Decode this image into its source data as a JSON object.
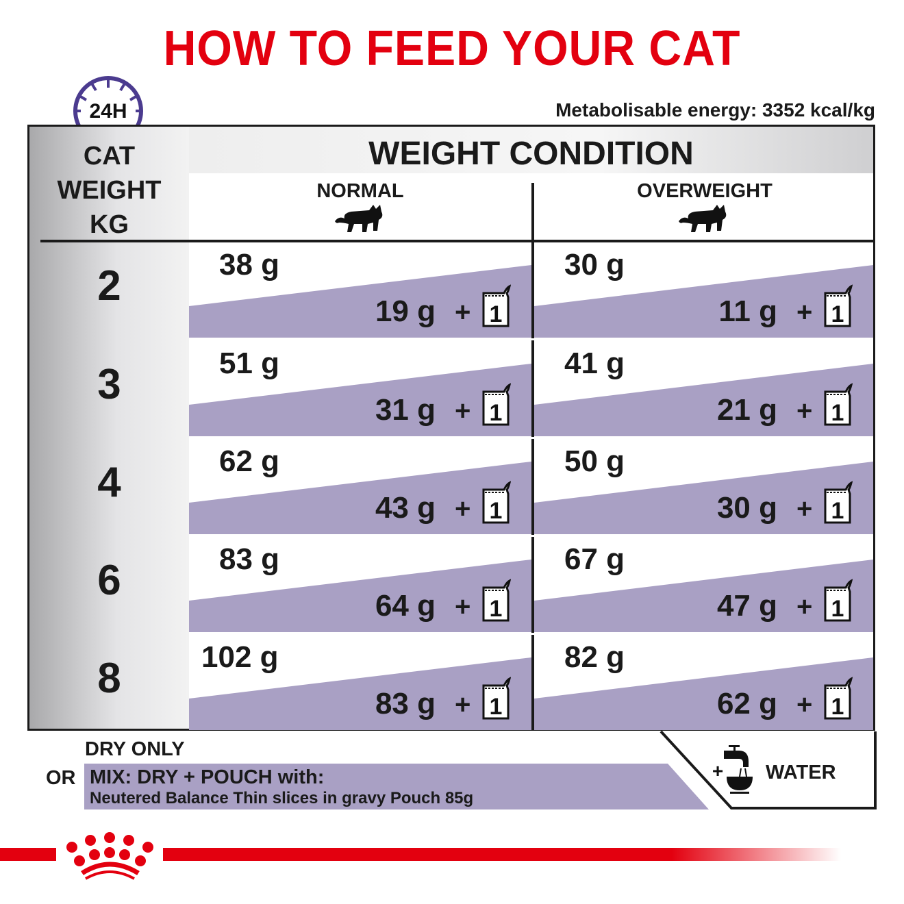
{
  "title": "HOW TO FEED YOUR CAT",
  "clock_label": "24H",
  "energy": "Metabolisable energy: 3352 kcal/kg",
  "table": {
    "left_header": [
      "CAT",
      "WEIGHT",
      "KG"
    ],
    "main_header": "WEIGHT CONDITION",
    "columns": [
      "NORMAL",
      "OVERWEIGHT"
    ],
    "rows": [
      {
        "weight": "2",
        "normal": {
          "dry": "38 g",
          "mix": "19 g"
        },
        "overweight": {
          "dry": "30 g",
          "mix": "11 g"
        }
      },
      {
        "weight": "3",
        "normal": {
          "dry": "51 g",
          "mix": "31 g"
        },
        "overweight": {
          "dry": "41 g",
          "mix": "21 g"
        }
      },
      {
        "weight": "4",
        "normal": {
          "dry": "62 g",
          "mix": "43 g"
        },
        "overweight": {
          "dry": "50 g",
          "mix": "30 g"
        }
      },
      {
        "weight": "6",
        "normal": {
          "dry": "83 g",
          "mix": "64 g"
        },
        "overweight": {
          "dry": "67 g",
          "mix": "47 g"
        }
      },
      {
        "weight": "8",
        "normal": {
          "dry": "102 g",
          "mix": "83 g"
        },
        "overweight": {
          "dry": "82 g",
          "mix": "62 g"
        }
      }
    ],
    "plus": "+",
    "pouch_count": "1"
  },
  "legend": {
    "dry_only": "DRY ONLY",
    "or": "OR",
    "mix": "MIX: DRY + POUCH with:",
    "pouch": "Neutered Balance Thin slices in gravy Pouch 85g",
    "water_plus": "+",
    "water": "WATER"
  },
  "colors": {
    "brand_red": "#e3000f",
    "mix_band": "#a9a0c4",
    "clock": "#4b3b8f"
  },
  "icons": [
    "clock-icon",
    "cat-icon",
    "pouch-icon",
    "water-tap-icon",
    "royal-canin-crown-logo"
  ]
}
